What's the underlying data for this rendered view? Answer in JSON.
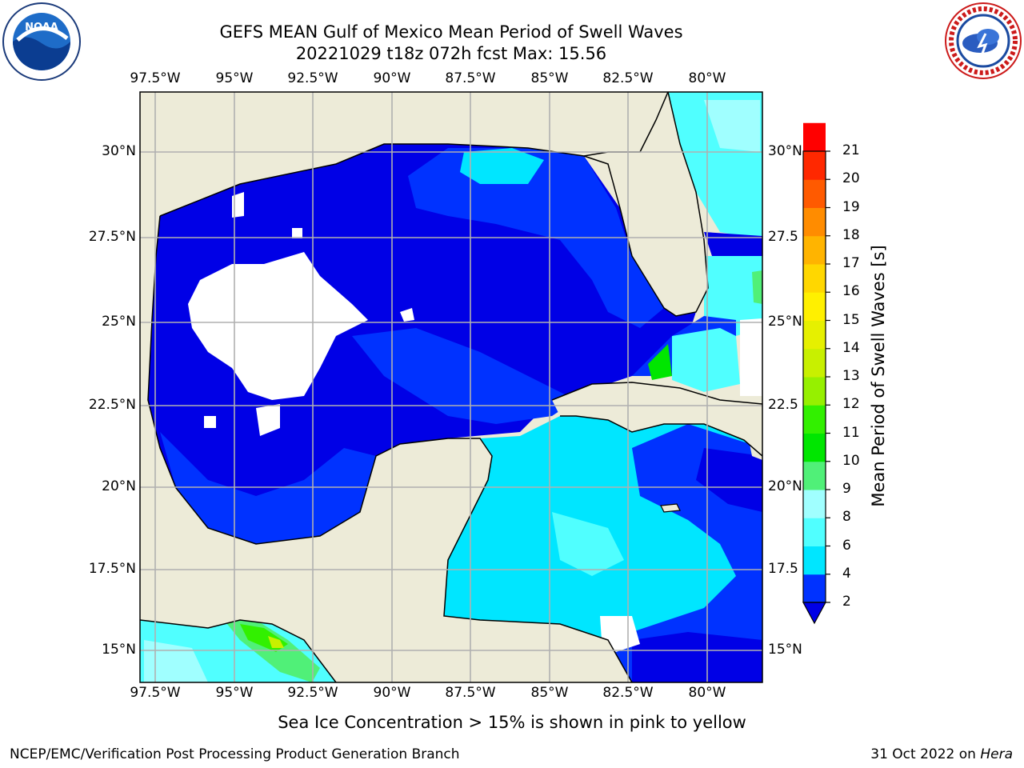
{
  "header": {
    "title_line1": "GEFS MEAN Gulf of Mexico Mean Period of Swell Waves",
    "title_line2": "20221029 t18z 072h fcst   Max: 15.56"
  },
  "map": {
    "lon_labels": [
      "97.5°W",
      "95°W",
      "92.5°W",
      "90°W",
      "87.5°W",
      "85°W",
      "82.5°W",
      "80°W"
    ],
    "lat_labels_left": [
      "30°N",
      "27.5°N",
      "25°N",
      "22.5°N",
      "20°N",
      "17.5°N",
      "15°N"
    ],
    "lat_labels_right": [
      "30°N",
      "27.5",
      "25°N",
      "22.5",
      "20°N",
      "17.5",
      "15°N"
    ],
    "colors": {
      "land": "#edebd8",
      "coast": "#000000",
      "grid": "#b0b0b0"
    }
  },
  "colorbar": {
    "title": "Mean Period of Swell Waves [s]",
    "levels": [
      "2",
      "4",
      "6",
      "8",
      "9",
      "10",
      "11",
      "12",
      "13",
      "14",
      "15",
      "16",
      "17",
      "18",
      "19",
      "20",
      "21"
    ],
    "colors": [
      "#0032ff",
      "#00e6ff",
      "#50ffff",
      "#a0ffff",
      "#50f078",
      "#00e600",
      "#32f000",
      "#96f000",
      "#c8f000",
      "#e6f000",
      "#fff000",
      "#ffd700",
      "#ffb400",
      "#ff8c00",
      "#ff5a00",
      "#ff2800",
      "#ff0000"
    ],
    "extend_color": "#0000e6"
  },
  "note": "Sea Ice Concentration > 15% is shown in pink to yellow",
  "footer": {
    "left": "NCEP/EMC/Verification Post Processing Product Generation Branch",
    "right_date": "31 Oct 2022 on ",
    "right_machine": "Hera"
  },
  "logos": {
    "left": "noaa-logo",
    "right": "nws-logo"
  }
}
